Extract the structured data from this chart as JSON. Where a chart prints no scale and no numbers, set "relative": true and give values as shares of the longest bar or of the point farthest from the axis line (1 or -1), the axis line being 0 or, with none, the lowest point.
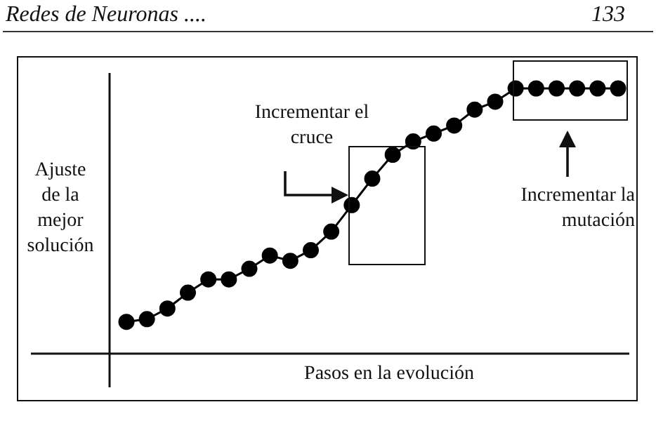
{
  "chart_data": {
    "type": "line",
    "relative": true,
    "marker": "circle",
    "color": "#000000",
    "legend": false,
    "xlabel": "Pasos en la evolución",
    "ylabel": "Ajuste de la mejor solución",
    "annotations": [
      "Redes de Neuronas ....",
      "133",
      "Incrementar el cruce",
      "Incrementar la mutación"
    ],
    "categories": [
      null,
      null,
      null,
      null,
      null,
      null,
      null,
      null,
      null,
      null,
      null,
      null,
      null,
      null,
      null,
      null,
      null,
      null,
      null,
      null,
      null,
      null,
      null,
      null,
      null
    ],
    "values": [
      0.12,
      0.13,
      0.17,
      0.23,
      0.28,
      0.28,
      0.32,
      0.37,
      0.35,
      0.39,
      0.46,
      0.56,
      0.66,
      0.75,
      0.8,
      0.83,
      0.86,
      0.92,
      0.95,
      1,
      1,
      1,
      1,
      1,
      1
    ]
  }
}
